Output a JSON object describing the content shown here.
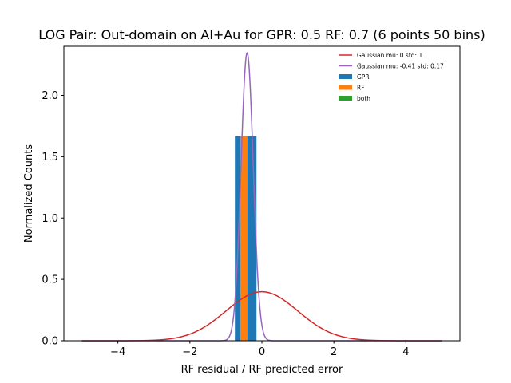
{
  "chart_data": {
    "type": "bar",
    "title": "LOG Pair: Out-domain on Al+Au for GPR: 0.5 RF: 0.7 (6 points 50 bins)",
    "xlabel": "RF residual / RF predicted error",
    "ylabel": "Normalized Counts",
    "xlim": [
      -5.5,
      5.5
    ],
    "ylim": [
      0,
      2.4
    ],
    "xticks": [
      -4,
      -2,
      0,
      2,
      4
    ],
    "xtick_labels": [
      "−4",
      "−2",
      "0",
      "2",
      "4"
    ],
    "yticks": [
      0.0,
      0.5,
      1.0,
      1.5,
      2.0
    ],
    "ytick_labels": [
      "0.0",
      "0.5",
      "1.0",
      "1.5",
      "2.0"
    ],
    "grid": false,
    "legend_position": "top-right",
    "histograms": [
      {
        "name": "GPR",
        "color": "#1f77b4",
        "bins": [
          [
            -0.75,
            -0.45,
            1.667
          ],
          [
            -0.45,
            -0.15,
            1.667
          ]
        ]
      },
      {
        "name": "RF",
        "color": "#ff7f0e",
        "bins": [
          [
            -0.6,
            -0.4,
            1.667
          ]
        ]
      },
      {
        "name": "both",
        "color": "#2ca02c",
        "bins": []
      }
    ],
    "curves": [
      {
        "name": "Gaussian mu: 0 std: 1",
        "color": "#d62728",
        "mu": 0,
        "std": 1,
        "x_range": [
          -5,
          5
        ]
      },
      {
        "name": "Gaussian mu: -0.41 std: 0.17",
        "color": "#9467bd",
        "mu": -0.41,
        "std": 0.17,
        "x_range": [
          -5,
          5
        ]
      }
    ]
  }
}
